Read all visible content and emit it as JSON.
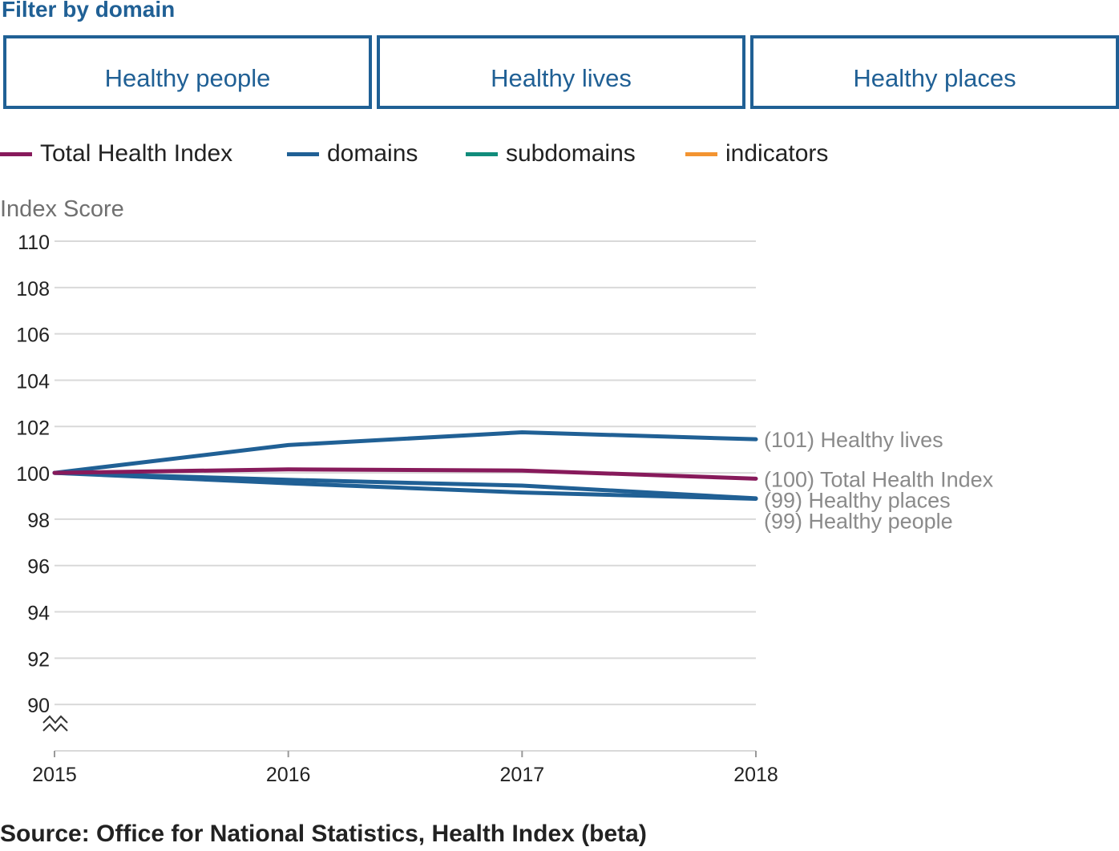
{
  "filter": {
    "title": "Filter by domain",
    "buttons": [
      "Healthy people",
      "Healthy lives",
      "Healthy places"
    ]
  },
  "legend": [
    {
      "label": "Total Health Index",
      "color": "#871a5b"
    },
    {
      "label": "domains",
      "color": "#206095"
    },
    {
      "label": "subdomains",
      "color": "#118c7b"
    },
    {
      "label": "indicators",
      "color": "#f39431"
    }
  ],
  "chart_data": {
    "type": "line",
    "ylabel": "Index Score",
    "xlabel": "",
    "x": [
      "2015",
      "2016",
      "2017",
      "2018"
    ],
    "ylim": [
      88,
      110
    ],
    "yticks": [
      90,
      92,
      94,
      96,
      98,
      100,
      102,
      104,
      106,
      108,
      110
    ],
    "axis_break": true,
    "grid": true,
    "series": [
      {
        "name": "Healthy lives",
        "end_label": "(101) Healthy lives",
        "color": "#206095",
        "values": [
          100,
          101.2,
          101.75,
          101.45
        ]
      },
      {
        "name": "Total Health Index",
        "end_label": "(100) Total Health Index",
        "color": "#871a5b",
        "values": [
          100,
          100.15,
          100.1,
          99.75
        ]
      },
      {
        "name": "Healthy places",
        "end_label": "(99) Healthy places",
        "color": "#206095",
        "values": [
          100,
          99.7,
          99.45,
          98.9
        ]
      },
      {
        "name": "Healthy people",
        "end_label": "(99) Healthy people",
        "color": "#206095",
        "values": [
          100,
          99.55,
          99.15,
          98.88
        ]
      }
    ]
  },
  "source": "Source: Office for National Statistics, Health Index (beta)"
}
